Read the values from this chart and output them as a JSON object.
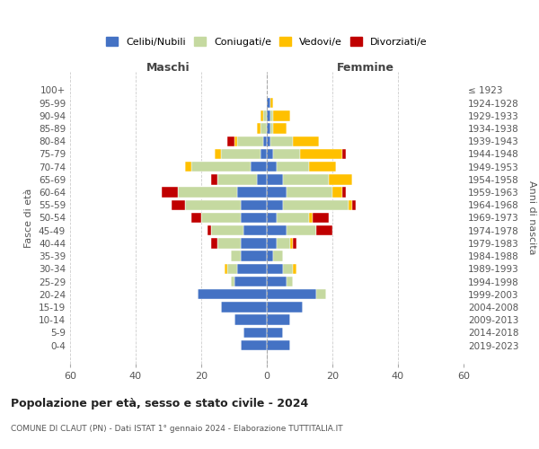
{
  "age_groups": [
    "0-4",
    "5-9",
    "10-14",
    "15-19",
    "20-24",
    "25-29",
    "30-34",
    "35-39",
    "40-44",
    "45-49",
    "50-54",
    "55-59",
    "60-64",
    "65-69",
    "70-74",
    "75-79",
    "80-84",
    "85-89",
    "90-94",
    "95-99",
    "100+"
  ],
  "birth_years": [
    "2019-2023",
    "2014-2018",
    "2009-2013",
    "2004-2008",
    "1999-2003",
    "1994-1998",
    "1989-1993",
    "1984-1988",
    "1979-1983",
    "1974-1978",
    "1969-1973",
    "1964-1968",
    "1959-1963",
    "1954-1958",
    "1949-1953",
    "1944-1948",
    "1939-1943",
    "1934-1938",
    "1929-1933",
    "1924-1928",
    "≤ 1923"
  ],
  "males": {
    "celibi": [
      8,
      7,
      10,
      14,
      21,
      10,
      9,
      8,
      8,
      7,
      8,
      8,
      9,
      3,
      5,
      2,
      1,
      0,
      0,
      0,
      0
    ],
    "coniugati": [
      0,
      0,
      0,
      0,
      0,
      1,
      3,
      3,
      7,
      10,
      12,
      17,
      18,
      12,
      18,
      12,
      8,
      2,
      1,
      0,
      0
    ],
    "vedovi": [
      0,
      0,
      0,
      0,
      0,
      0,
      1,
      0,
      0,
      0,
      0,
      0,
      0,
      0,
      2,
      2,
      1,
      1,
      1,
      0,
      0
    ],
    "divorziati": [
      0,
      0,
      0,
      0,
      0,
      0,
      0,
      0,
      2,
      1,
      3,
      4,
      5,
      2,
      0,
      0,
      2,
      0,
      0,
      0,
      0
    ]
  },
  "females": {
    "celibi": [
      7,
      5,
      7,
      11,
      15,
      6,
      5,
      2,
      3,
      6,
      3,
      5,
      6,
      5,
      3,
      2,
      1,
      1,
      1,
      1,
      0
    ],
    "coniugati": [
      0,
      0,
      0,
      0,
      3,
      2,
      3,
      3,
      4,
      9,
      10,
      20,
      14,
      14,
      10,
      8,
      7,
      1,
      1,
      0,
      0
    ],
    "vedovi": [
      0,
      0,
      0,
      0,
      0,
      0,
      1,
      0,
      1,
      0,
      1,
      1,
      3,
      7,
      8,
      13,
      8,
      4,
      5,
      1,
      0
    ],
    "divorziati": [
      0,
      0,
      0,
      0,
      0,
      0,
      0,
      0,
      1,
      5,
      5,
      1,
      1,
      0,
      0,
      1,
      0,
      0,
      0,
      0,
      0
    ]
  },
  "colors": {
    "celibi": "#4472c4",
    "coniugati": "#c5d9a0",
    "vedovi": "#ffc000",
    "divorziati": "#c00000"
  },
  "xlim": [
    -60,
    60
  ],
  "xticks": [
    -60,
    -40,
    -20,
    0,
    20,
    40,
    60
  ],
  "xticklabels": [
    "60",
    "40",
    "20",
    "0",
    "20",
    "40",
    "60"
  ],
  "title": "Popolazione per età, sesso e stato civile - 2024",
  "subtitle": "COMUNE DI CLAUT (PN) - Dati ISTAT 1° gennaio 2024 - Elaborazione TUTTITALIA.IT",
  "ylabel_left": "Fasce di età",
  "ylabel_right": "Anni di nascita",
  "label_maschi": "Maschi",
  "label_femmine": "Femmine",
  "legend_labels": [
    "Celibi/Nubili",
    "Coniugati/e",
    "Vedovi/e",
    "Divorziati/e"
  ],
  "bg_color": "#ffffff",
  "grid_color": "#cccccc"
}
